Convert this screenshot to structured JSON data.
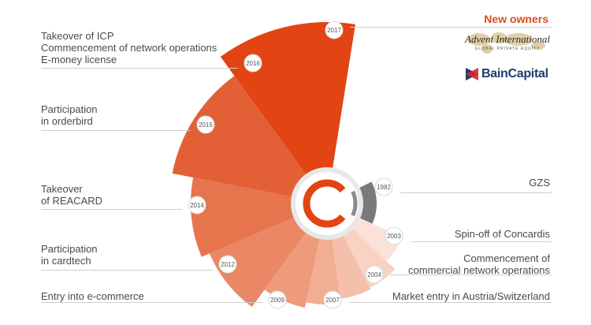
{
  "new_owners": {
    "heading": "New owners",
    "advent": {
      "name": "Advent International",
      "tagline": "GLOBAL PRIVATE EQUITY",
      "icon": "world-map-icon"
    },
    "bain": {
      "name": "BainCapital",
      "icon": "bain-logo-icon"
    }
  },
  "center_icon": "concardis-c-logo-icon",
  "milestones": [
    {
      "year": "1982",
      "lines": [
        "GZS"
      ],
      "side": "right",
      "color": "#7a7a7a"
    },
    {
      "year": "2003",
      "lines": [
        "Spin-off of Concardis"
      ],
      "side": "right",
      "color": "#fbe2d8"
    },
    {
      "year": "2004",
      "lines": [
        "Commencement of",
        "commercial network operations"
      ],
      "side": "right",
      "color": "#f8d2c2"
    },
    {
      "year": "2007",
      "lines": [
        "Market entry in Austria/Switzerland"
      ],
      "side": "right",
      "color": "#f5c0ab"
    },
    {
      "year": "2009",
      "lines": [
        "Entry into e-commerce"
      ],
      "side": "left",
      "color": "#f2ae93"
    },
    {
      "year": "2012",
      "lines": [
        "Participation",
        "in cardtech"
      ],
      "side": "left",
      "color": "#ee9b7b"
    },
    {
      "year": "2014",
      "lines": [
        "Takeover",
        "of REACARD"
      ],
      "side": "left",
      "color": "#ea8764"
    },
    {
      "year": "2015",
      "lines": [
        "Participation",
        "in orderbird"
      ],
      "side": "left",
      "color": "#e6744d"
    },
    {
      "year": "2016",
      "lines": [
        "Takeover of ICP",
        "Commencement of network operations",
        "E-money license"
      ],
      "side": "left",
      "color": "#e36037"
    },
    {
      "year": "2017",
      "lines": [],
      "side": "top",
      "color": "#e24414"
    }
  ]
}
